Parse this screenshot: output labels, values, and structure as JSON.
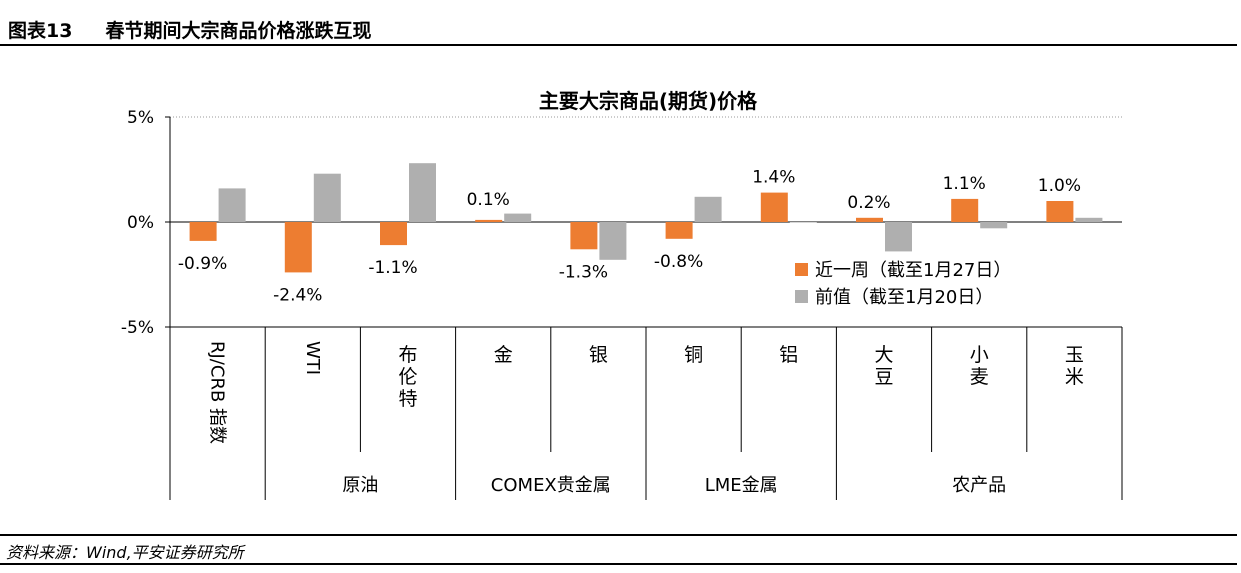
{
  "figure": {
    "title": "图表13     春节期间大宗商品价格涨跌互现",
    "source": "资料来源：Wind,平安证券研究所"
  },
  "chart_data": {
    "type": "bar",
    "title": "主要大宗商品(期货)价格",
    "categories": [
      "RJ/CRB 指数",
      "WTI",
      "布伦特",
      "金",
      "银",
      "铜",
      "铝",
      "大豆",
      "小麦",
      "玉米"
    ],
    "groups": [
      {
        "label": "原油",
        "categories": [
          "WTI",
          "布伦特"
        ]
      },
      {
        "label": "COMEX贵金属",
        "categories": [
          "金",
          "银"
        ]
      },
      {
        "label": "LME金属",
        "categories": [
          "铜",
          "铝"
        ]
      },
      {
        "label": "农产品",
        "categories": [
          "大豆",
          "小麦",
          "玉米"
        ]
      }
    ],
    "series": [
      {
        "name": "近一周（截至1月27日）",
        "color": "#ED7D31",
        "values": [
          -0.9,
          -2.4,
          -1.1,
          0.1,
          -1.3,
          -0.8,
          1.4,
          0.2,
          1.1,
          1.0
        ]
      },
      {
        "name": "前值（截至1月20日）",
        "color": "#AFAFAF",
        "values": [
          1.6,
          2.3,
          2.8,
          0.4,
          -1.8,
          1.2,
          0.0,
          -1.4,
          -0.3,
          0.2
        ]
      }
    ],
    "data_labels": [
      "-0.9%",
      "-2.4%",
      "-1.1%",
      "0.1%",
      "-1.3%",
      "-0.8%",
      "1.4%",
      "0.2%",
      "1.1%",
      "1.0%"
    ],
    "yticks": [
      "5%",
      "0%",
      "-5%"
    ],
    "ylim": [
      -5,
      5
    ],
    "grid": "dotted top line",
    "legend": "right, inside plot"
  }
}
